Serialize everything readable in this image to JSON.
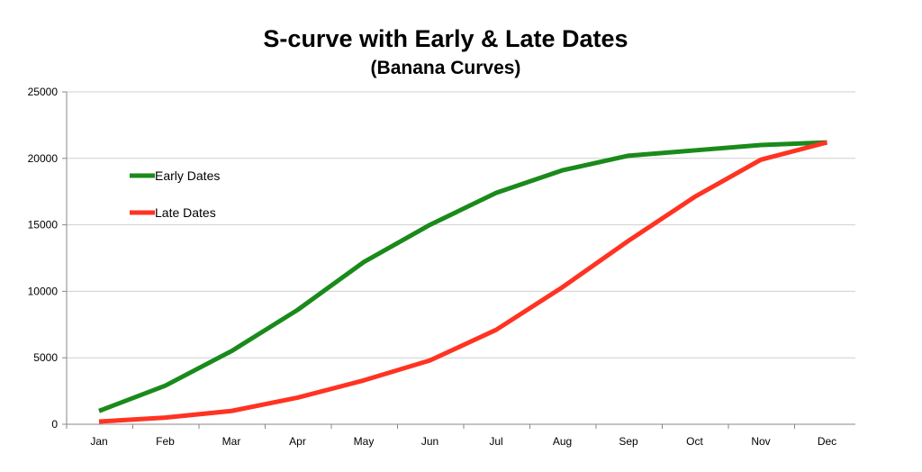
{
  "chart_data": {
    "type": "line",
    "title": "S-curve with Early & Late Dates",
    "subtitle": "(Banana Curves)",
    "categories": [
      "Jan",
      "Feb",
      "Mar",
      "Apr",
      "May",
      "Jun",
      "Jul",
      "Aug",
      "Sep",
      "Oct",
      "Nov",
      "Dec"
    ],
    "series": [
      {
        "name": "Early Dates",
        "color": "#1a8a1a",
        "values": [
          1000,
          2900,
          5500,
          8600,
          12200,
          15000,
          17400,
          19100,
          20200,
          20600,
          21000,
          21200
        ]
      },
      {
        "name": "Late Dates",
        "color": "#ff3322",
        "values": [
          200,
          500,
          1000,
          2000,
          3300,
          4800,
          7100,
          10300,
          13800,
          17100,
          19900,
          21200
        ]
      }
    ],
    "ylim": [
      0,
      25000
    ],
    "yticks": [
      0,
      5000,
      10000,
      15000,
      20000,
      25000
    ],
    "grid": true,
    "legend_position": "top-left"
  }
}
